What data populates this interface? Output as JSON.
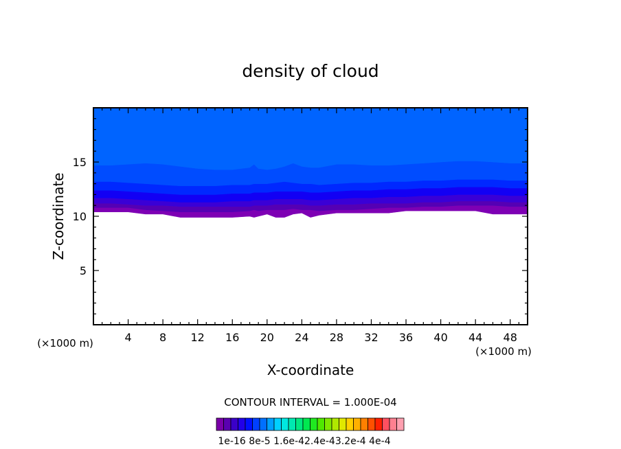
{
  "chart_data": {
    "type": "contour",
    "title": "density of cloud",
    "xlabel": "X-coordinate",
    "ylabel": "Z-coordinate",
    "x_unit": "(×1000 m)",
    "y_unit": "(×1000 m)",
    "xlim": [
      0,
      50
    ],
    "ylim": [
      0,
      20
    ],
    "x_ticks": [
      4,
      8,
      12,
      16,
      20,
      24,
      28,
      32,
      36,
      40,
      44,
      48
    ],
    "y_ticks": [
      5,
      10,
      15
    ],
    "contour_interval_text": "CONTOUR INTERVAL = 1.000E-04",
    "colorbar_labels": [
      "1e-16",
      "8e-5",
      "1.6e-4",
      "2.4e-4",
      "3.2e-4",
      "4e-4"
    ],
    "colorbar_label_text": "1e-16 8e-5 1.6e-42.4e-43.2e-4 4e-4",
    "colors": {
      "levels": [
        "#7a00a8",
        "#5a00b0",
        "#3a00c8",
        "#2200e8",
        "#0010ff",
        "#0040ff",
        "#0070ff",
        "#00a0ff",
        "#00d0ff",
        "#00e8e0",
        "#00e8b0",
        "#00e880",
        "#00e850",
        "#20e820",
        "#50e800",
        "#80e800",
        "#b0e800",
        "#e0e800",
        "#ffd000",
        "#ffb000",
        "#ff8000",
        "#ff5000",
        "#ff2000",
        "#ff5060",
        "#ff8090",
        "#ffa0b0"
      ],
      "band_fill": [
        "#7e00b4",
        "#5500b4",
        "#3a00d6",
        "#1200f4",
        "#0028ff",
        "#004cff",
        "#0064ff"
      ]
    },
    "boundaries": {
      "x": [
        0,
        2,
        4,
        6,
        8,
        10,
        12,
        14,
        16,
        18,
        18.5,
        19,
        20,
        21,
        22,
        23,
        24,
        25,
        26,
        28,
        30,
        32,
        34,
        36,
        38,
        40,
        42,
        44,
        46,
        48,
        50
      ],
      "z": [
        [
          10.4,
          10.4,
          10.4,
          10.2,
          10.2,
          9.9,
          9.9,
          9.9,
          9.9,
          10.0,
          9.9,
          10.0,
          10.2,
          9.9,
          9.9,
          10.2,
          10.3,
          9.9,
          10.1,
          10.3,
          10.3,
          10.3,
          10.3,
          10.5,
          10.5,
          10.5,
          10.5,
          10.5,
          10.2,
          10.2,
          10.2
        ],
        [
          10.8,
          10.8,
          10.8,
          10.6,
          10.5,
          10.4,
          10.4,
          10.4,
          10.4,
          10.5,
          10.6,
          10.5,
          10.6,
          10.6,
          10.6,
          10.7,
          10.6,
          10.6,
          10.5,
          10.6,
          10.6,
          10.7,
          10.8,
          10.8,
          10.9,
          10.9,
          11.0,
          11.0,
          11.0,
          10.9,
          10.9
        ],
        [
          11.2,
          11.2,
          11.1,
          11.0,
          11.0,
          10.9,
          10.9,
          10.9,
          10.9,
          10.9,
          11.0,
          11.0,
          11.0,
          11.1,
          11.1,
          11.1,
          11.1,
          11.0,
          11.0,
          11.1,
          11.1,
          11.2,
          11.2,
          11.2,
          11.3,
          11.3,
          11.4,
          11.4,
          11.4,
          11.3,
          11.3
        ],
        [
          11.7,
          11.7,
          11.6,
          11.5,
          11.4,
          11.3,
          11.3,
          11.3,
          11.4,
          11.4,
          11.5,
          11.5,
          11.5,
          11.6,
          11.6,
          11.6,
          11.6,
          11.5,
          11.5,
          11.6,
          11.7,
          11.7,
          11.8,
          11.8,
          11.9,
          11.9,
          12.0,
          12.0,
          12.0,
          11.9,
          11.9
        ],
        [
          12.4,
          12.4,
          12.3,
          12.2,
          12.1,
          12.0,
          12.0,
          12.0,
          12.1,
          12.1,
          12.2,
          12.2,
          12.2,
          12.3,
          12.3,
          12.3,
          12.3,
          12.2,
          12.2,
          12.3,
          12.4,
          12.4,
          12.5,
          12.5,
          12.6,
          12.6,
          12.7,
          12.7,
          12.7,
          12.6,
          12.6
        ],
        [
          13.2,
          13.2,
          13.1,
          13.0,
          12.9,
          12.8,
          12.8,
          12.8,
          12.9,
          12.9,
          13.0,
          13.0,
          13.0,
          13.1,
          13.2,
          13.1,
          13.0,
          13.0,
          12.9,
          13.0,
          13.1,
          13.1,
          13.2,
          13.2,
          13.3,
          13.3,
          13.4,
          13.4,
          13.4,
          13.3,
          13.3
        ],
        [
          14.7,
          14.7,
          14.8,
          14.9,
          14.8,
          14.6,
          14.4,
          14.3,
          14.3,
          14.5,
          14.8,
          14.4,
          14.3,
          14.4,
          14.6,
          14.9,
          14.6,
          14.5,
          14.5,
          14.8,
          14.8,
          14.7,
          14.7,
          14.8,
          14.9,
          15.0,
          15.1,
          15.1,
          15.0,
          14.9,
          14.9
        ]
      ]
    }
  }
}
